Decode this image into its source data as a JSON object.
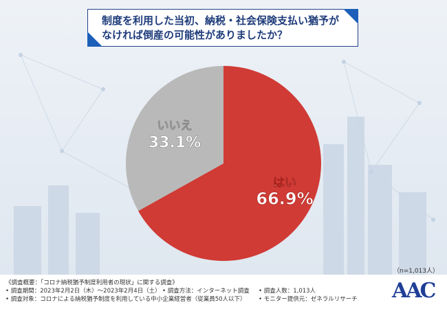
{
  "title": {
    "line1": "制度を利用した当初、納税・社会保険支払い猶予が",
    "line2": "なければ倒産の可能性がありましたか？"
  },
  "chart_data": {
    "type": "pie",
    "slices": [
      {
        "label": "はい",
        "value": 66.9,
        "display": "66.9%",
        "color": "#d03b35"
      },
      {
        "label": "いいえ",
        "value": 33.1,
        "display": "33.1%",
        "color": "#b9b9b9"
      }
    ],
    "start": "top",
    "direction": "clockwise"
  },
  "sample_size": "（n=1,013人）",
  "footer": {
    "survey": "《調査概要：「コロナ納税猶予制度利用者の現状」に関する調査》",
    "period": "• 調査期間：2023年2月2日（木）～2023年2月4日（土）",
    "method": "• 調査方法：インターネット調査",
    "count": "• 調査人数：1,013人",
    "target": "• 調査対象：コロナによる納税猶予制度を利用している中小企業経営者（従業員50人以下）",
    "provider": "• モニター提供元：ゼネラルリサーチ"
  },
  "logo": "AAC",
  "colors": {
    "accent": "#1c5fb8",
    "title": "#1d3b7a"
  }
}
